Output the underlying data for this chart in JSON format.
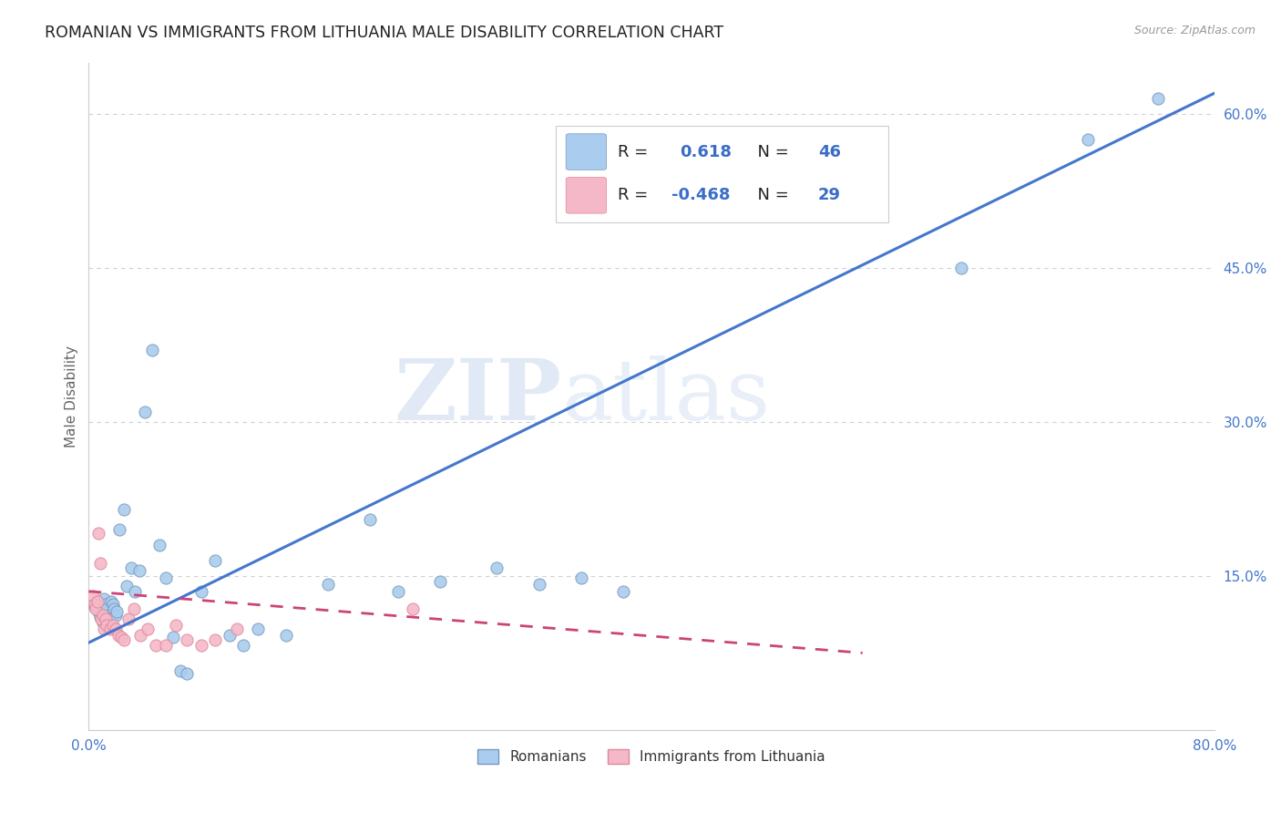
{
  "title": "ROMANIAN VS IMMIGRANTS FROM LITHUANIA MALE DISABILITY CORRELATION CHART",
  "source": "Source: ZipAtlas.com",
  "ylabel": "Male Disability",
  "xlim": [
    0.0,
    0.8
  ],
  "ylim": [
    0.0,
    0.65
  ],
  "y_ticks": [
    0.0,
    0.15,
    0.3,
    0.45,
    0.6
  ],
  "y_tick_labels": [
    "",
    "15.0%",
    "30.0%",
    "45.0%",
    "60.0%"
  ],
  "grid_color": "#d0d0d0",
  "background_color": "#ffffff",
  "watermark_zip": "ZIP",
  "watermark_atlas": "atlas",
  "legend_R1": "0.618",
  "legend_N1": "46",
  "legend_R2": "-0.468",
  "legend_N2": "29",
  "series1_color": "#aaccee",
  "series1_edge_color": "#7799bb",
  "series2_color": "#f5b8c8",
  "series2_edge_color": "#dd8899",
  "line1_color": "#4477cc",
  "line2_color": "#cc4477",
  "marker_size": 90,
  "label1": "Romanians",
  "label2": "Immigrants from Lithuania",
  "romanian_x": [
    0.004,
    0.006,
    0.007,
    0.008,
    0.009,
    0.01,
    0.011,
    0.012,
    0.013,
    0.014,
    0.015,
    0.016,
    0.017,
    0.018,
    0.019,
    0.02,
    0.022,
    0.025,
    0.027,
    0.03,
    0.033,
    0.036,
    0.04,
    0.045,
    0.05,
    0.055,
    0.06,
    0.065,
    0.07,
    0.08,
    0.09,
    0.1,
    0.11,
    0.12,
    0.14,
    0.17,
    0.2,
    0.22,
    0.25,
    0.29,
    0.32,
    0.35,
    0.38,
    0.62,
    0.71,
    0.76
  ],
  "romanian_y": [
    0.12,
    0.125,
    0.115,
    0.11,
    0.118,
    0.105,
    0.128,
    0.122,
    0.118,
    0.112,
    0.108,
    0.125,
    0.122,
    0.118,
    0.112,
    0.115,
    0.195,
    0.215,
    0.14,
    0.158,
    0.135,
    0.155,
    0.31,
    0.37,
    0.18,
    0.148,
    0.09,
    0.058,
    0.055,
    0.135,
    0.165,
    0.092,
    0.082,
    0.098,
    0.092,
    0.142,
    0.205,
    0.135,
    0.145,
    0.158,
    0.142,
    0.148,
    0.135,
    0.45,
    0.575,
    0.615
  ],
  "lit_line_x": [
    0.0,
    0.55
  ],
  "lit_line_y": [
    0.135,
    0.075
  ],
  "rom_line_x": [
    0.0,
    0.8
  ],
  "rom_line_y": [
    0.085,
    0.62
  ],
  "lithuania_x": [
    0.003,
    0.004,
    0.005,
    0.006,
    0.007,
    0.008,
    0.009,
    0.01,
    0.011,
    0.012,
    0.013,
    0.015,
    0.017,
    0.019,
    0.021,
    0.023,
    0.025,
    0.028,
    0.032,
    0.037,
    0.042,
    0.048,
    0.055,
    0.062,
    0.07,
    0.08,
    0.09,
    0.105,
    0.23
  ],
  "lithuania_y": [
    0.13,
    0.122,
    0.118,
    0.125,
    0.192,
    0.162,
    0.108,
    0.112,
    0.098,
    0.108,
    0.102,
    0.098,
    0.102,
    0.098,
    0.092,
    0.09,
    0.088,
    0.108,
    0.118,
    0.092,
    0.098,
    0.082,
    0.082,
    0.102,
    0.088,
    0.082,
    0.088,
    0.098,
    0.118
  ]
}
